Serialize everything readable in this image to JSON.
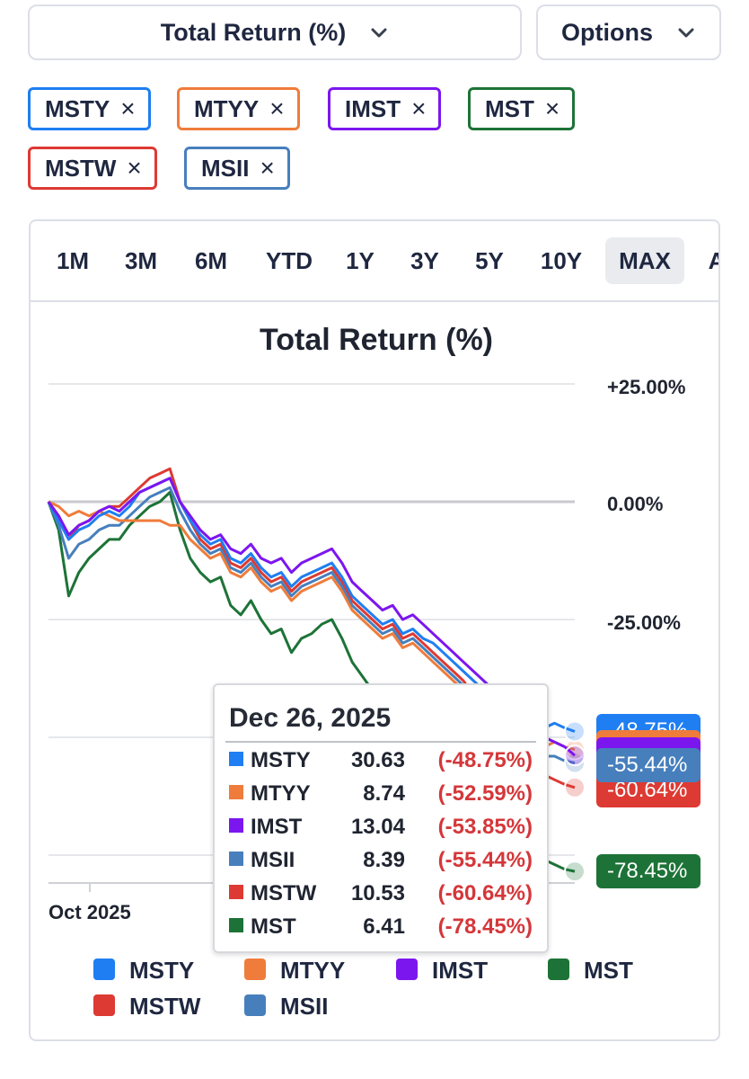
{
  "header": {
    "metric_dropdown": "Total Return (%)",
    "options_dropdown": "Options"
  },
  "chips": [
    {
      "label": "MSTY",
      "color": "#1f7ef2"
    },
    {
      "label": "MTYY",
      "color": "#ef7c3b"
    },
    {
      "label": "IMST",
      "color": "#7c16ef"
    },
    {
      "label": "MST",
      "color": "#1d7337"
    },
    {
      "label": "MSTW",
      "color": "#dd3a33"
    },
    {
      "label": "MSII",
      "color": "#477fbd"
    }
  ],
  "remove_glyph": "×",
  "tabs": [
    "1M",
    "3M",
    "6M",
    "YTD",
    "1Y",
    "3Y",
    "5Y",
    "10Y",
    "MAX",
    "A"
  ],
  "active_tab": "MAX",
  "chart_data": {
    "type": "line",
    "title": "Total Return (%)",
    "ylabel": "",
    "xlabel": "",
    "ylim": [
      -88,
      28
    ],
    "y_ticks": [
      "+25.00%",
      "0.00%",
      "-25.00%"
    ],
    "x_ticks": [
      "Oct 2025"
    ],
    "x_start": "2025-09-03",
    "x_end": "2026-01-16",
    "legend_position": "bottom",
    "series": [
      {
        "name": "MSTY",
        "color": "#1f7ef2",
        "end_label": "-48.75%",
        "values": [
          0,
          -4,
          -8,
          -6,
          -5,
          -3,
          -2,
          -3,
          -1,
          2,
          3,
          4,
          5,
          0,
          -4,
          -7,
          -9,
          -8,
          -12,
          -13,
          -11,
          -14,
          -16,
          -15,
          -18,
          -16,
          -15,
          -14,
          -13,
          -16,
          -20,
          -22,
          -24,
          -26,
          -25,
          -28,
          -27,
          -29,
          -30,
          -32,
          -34,
          -36,
          -38,
          -40,
          -42,
          -44,
          -45,
          -46,
          -47,
          -48,
          -47,
          -48,
          -48.75
        ]
      },
      {
        "name": "MTYY",
        "color": "#ef7c3b",
        "end_label": "-52.59%",
        "values": [
          0,
          -1,
          -3,
          -2,
          -3,
          -2,
          -3,
          -4,
          -4,
          -4,
          -4,
          -4,
          -5,
          -5,
          -8,
          -10,
          -12,
          -11,
          -15,
          -16,
          -14,
          -17,
          -19,
          -18,
          -21,
          -19,
          -18,
          -17,
          -16,
          -19,
          -23,
          -25,
          -27,
          -29,
          -28,
          -31,
          -30,
          -32,
          -34,
          -36,
          -38,
          -40,
          -42,
          -44,
          -46,
          -48,
          -49,
          -50,
          -51,
          -52,
          -51,
          -52,
          -52.59
        ]
      },
      {
        "name": "IMST",
        "color": "#7c16ef",
        "end_label": "-53.85%",
        "values": [
          0,
          -3,
          -7,
          -5,
          -4,
          -2,
          -1,
          -2,
          0,
          2,
          3,
          4,
          5,
          0,
          -3,
          -6,
          -8,
          -7,
          -10,
          -11,
          -9,
          -12,
          -13,
          -12,
          -15,
          -13,
          -12,
          -11,
          -10,
          -13,
          -17,
          -19,
          -21,
          -23,
          -22,
          -25,
          -24,
          -26,
          -28,
          -30,
          -32,
          -34,
          -36,
          -38,
          -40,
          -42,
          -44,
          -46,
          -48,
          -50,
          -51,
          -52,
          -53.85
        ]
      },
      {
        "name": "MST",
        "color": "#1d7337",
        "end_label": "-78.45%",
        "values": [
          0,
          -6,
          -20,
          -15,
          -12,
          -10,
          -8,
          -8,
          -5,
          -3,
          -1,
          0,
          2,
          -6,
          -12,
          -15,
          -17,
          -16,
          -22,
          -24,
          -21,
          -25,
          -28,
          -27,
          -32,
          -29,
          -28,
          -26,
          -25,
          -29,
          -34,
          -37,
          -40,
          -43,
          -42,
          -46,
          -45,
          -48,
          -51,
          -54,
          -57,
          -60,
          -62,
          -64,
          -66,
          -68,
          -70,
          -72,
          -74,
          -76,
          -77,
          -78,
          -78.45
        ]
      },
      {
        "name": "MSTW",
        "color": "#dd3a33",
        "end_label": "-60.64%",
        "values": [
          0,
          -3,
          -8,
          -5,
          -4,
          -2,
          -1,
          -1,
          1,
          3,
          5,
          6,
          7,
          0,
          -4,
          -8,
          -10,
          -9,
          -13,
          -14,
          -12,
          -15,
          -17,
          -16,
          -19,
          -17,
          -16,
          -15,
          -14,
          -17,
          -21,
          -23,
          -25,
          -27,
          -26,
          -29,
          -28,
          -30,
          -32,
          -34,
          -36,
          -38,
          -41,
          -44,
          -47,
          -50,
          -52,
          -54,
          -56,
          -58,
          -59,
          -60,
          -60.64
        ]
      },
      {
        "name": "MSII",
        "color": "#477fbd",
        "end_label": "-55.44%",
        "values": [
          0,
          -5,
          -12,
          -9,
          -8,
          -6,
          -5,
          -5,
          -3,
          -1,
          1,
          2,
          3,
          -2,
          -6,
          -9,
          -11,
          -10,
          -14,
          -15,
          -13,
          -16,
          -18,
          -17,
          -20,
          -18,
          -17,
          -16,
          -15,
          -18,
          -22,
          -24,
          -26,
          -28,
          -27,
          -30,
          -29,
          -31,
          -33,
          -35,
          -37,
          -39,
          -41,
          -43,
          -45,
          -47,
          -49,
          -51,
          -52,
          -54,
          -54,
          -55,
          -55.44
        ]
      }
    ]
  },
  "tooltip": {
    "date": "Dec 26, 2025",
    "rows": [
      {
        "name": "MSTY",
        "value": "30.63",
        "pct": "(-48.75%)",
        "color": "#1f7ef2"
      },
      {
        "name": "MTYY",
        "value": "8.74",
        "pct": "(-52.59%)",
        "color": "#ef7c3b"
      },
      {
        "name": "IMST",
        "value": "13.04",
        "pct": "(-53.85%)",
        "color": "#7c16ef"
      },
      {
        "name": "MSII",
        "value": "8.39",
        "pct": "(-55.44%)",
        "color": "#477fbd"
      },
      {
        "name": "MSTW",
        "value": "10.53",
        "pct": "(-60.64%)",
        "color": "#dd3a33"
      },
      {
        "name": "MST",
        "value": "6.41",
        "pct": "(-78.45%)",
        "color": "#1d7337"
      }
    ]
  },
  "legend": [
    {
      "name": "MSTY",
      "color": "#1f7ef2"
    },
    {
      "name": "MTYY",
      "color": "#ef7c3b"
    },
    {
      "name": "IMST",
      "color": "#7c16ef"
    },
    {
      "name": "MST",
      "color": "#1d7337"
    },
    {
      "name": "MSTW",
      "color": "#dd3a33"
    },
    {
      "name": "MSII",
      "color": "#477fbd"
    }
  ]
}
